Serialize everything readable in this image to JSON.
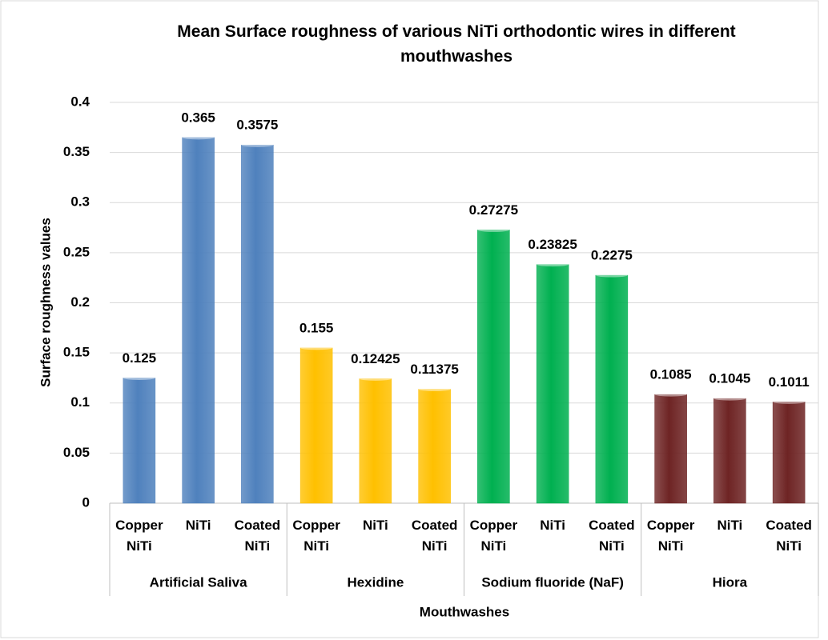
{
  "chart_data": {
    "type": "bar",
    "title": "Mean Surface roughness of various NiTi orthodontic wires in different mouthwashes",
    "xlabel": "Mouthwashes",
    "ylabel": "Surface roughness values",
    "categories": [
      "Copper NiTi",
      "NiTi",
      "Coated NiTi"
    ],
    "series": [
      {
        "name": "Artificial Saliva",
        "color": "#4f81bd",
        "values": [
          0.125,
          0.365,
          0.3575
        ]
      },
      {
        "name": "Hexidine",
        "color": "#ffc000",
        "values": [
          0.155,
          0.12425,
          0.11375
        ]
      },
      {
        "name": "Sodium fluoride (NaF)",
        "color": "#00b050",
        "values": [
          0.27275,
          0.23825,
          0.2275
        ]
      },
      {
        "name": "Hiora",
        "color": "#6e2424",
        "values": [
          0.1085,
          0.1045,
          0.1011
        ]
      }
    ],
    "ylim": [
      0,
      0.4
    ],
    "yticks": [
      0,
      0.05,
      0.1,
      0.15,
      0.2,
      0.25,
      0.3,
      0.35,
      0.4
    ],
    "grid": true
  }
}
